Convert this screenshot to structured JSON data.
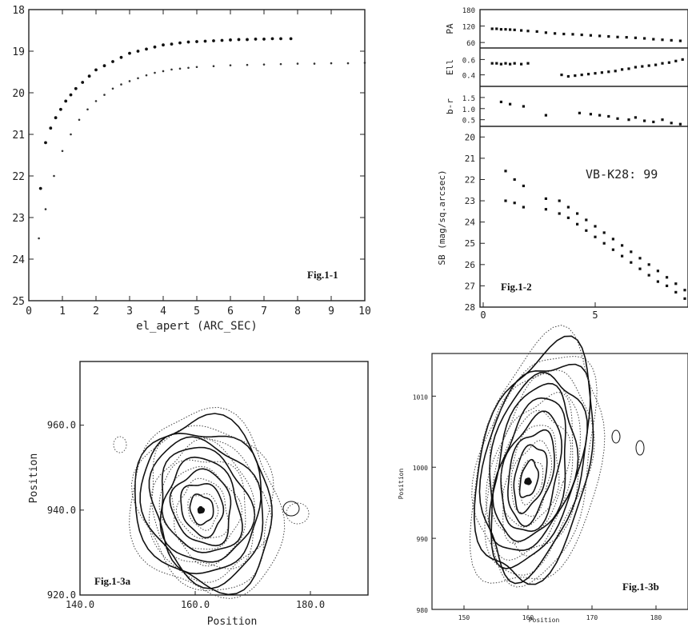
{
  "figures": {
    "fig11": "Fig.1-1",
    "fig12": "Fig.1-2",
    "fig13a": "Fig.1-3a",
    "fig13b": "Fig.1-3b"
  },
  "chart_data": [
    {
      "id": "fig1-1",
      "type": "scatter",
      "xlabel": "el_apert (ARC_SEC)",
      "ylabel": "",
      "xlim": [
        0,
        10
      ],
      "ylim": [
        25,
        18
      ],
      "y_inverted": true,
      "xticks": [
        "0",
        "1",
        "2",
        "3",
        "4",
        "5",
        "6",
        "7",
        "8",
        "9",
        "10"
      ],
      "yticks": [
        "18",
        "19",
        "20",
        "21",
        "22",
        "23",
        "24",
        "25"
      ],
      "series": [
        {
          "style": "dense",
          "x": [
            0.35,
            0.5,
            0.65,
            0.8,
            0.95,
            1.1,
            1.25,
            1.4,
            1.6,
            1.8,
            2.0,
            2.25,
            2.5,
            2.75,
            3.0,
            3.25,
            3.5,
            3.75,
            4.0,
            4.25,
            4.5,
            4.75,
            5.0,
            5.25,
            5.5,
            5.75,
            6.0,
            6.25,
            6.5,
            6.75,
            7.0,
            7.25,
            7.5,
            7.8
          ],
          "y": [
            22.3,
            21.2,
            20.85,
            20.6,
            20.4,
            20.2,
            20.05,
            19.9,
            19.75,
            19.6,
            19.45,
            19.35,
            19.25,
            19.15,
            19.05,
            19.0,
            18.95,
            18.9,
            18.85,
            18.83,
            18.8,
            18.78,
            18.77,
            18.76,
            18.75,
            18.74,
            18.73,
            18.72,
            18.72,
            18.71,
            18.71,
            18.7,
            18.7,
            18.7
          ]
        },
        {
          "style": "sparse",
          "x": [
            0.3,
            0.5,
            0.75,
            1.0,
            1.25,
            1.5,
            1.75,
            2.0,
            2.25,
            2.5,
            2.75,
            3.0,
            3.25,
            3.5,
            3.75,
            4.0,
            4.25,
            4.5,
            4.75,
            5.0,
            5.5,
            6.0,
            6.5,
            7.0,
            7.5,
            8.0,
            8.5,
            9.0,
            9.5,
            10.0
          ],
          "y": [
            23.5,
            22.8,
            22.0,
            21.4,
            21.0,
            20.65,
            20.4,
            20.2,
            20.05,
            19.9,
            19.8,
            19.72,
            19.65,
            19.58,
            19.52,
            19.48,
            19.44,
            19.42,
            19.4,
            19.38,
            19.36,
            19.34,
            19.33,
            19.32,
            19.31,
            19.3,
            19.3,
            19.29,
            19.29,
            19.28
          ]
        }
      ]
    },
    {
      "id": "fig1-2",
      "type": "scatter",
      "xlim": [
        0,
        9
      ],
      "xticks": [
        "0",
        "5"
      ],
      "annotation": "VB-K28: 99",
      "panels": [
        {
          "ylabel": "PA",
          "ylim": [
            40,
            180
          ],
          "yticks": [
            "180",
            "120",
            "60"
          ],
          "x": [
            0.4,
            0.6,
            0.8,
            1.0,
            1.2,
            1.4,
            1.7,
            2.0,
            2.4,
            2.8,
            3.2,
            3.6,
            4.0,
            4.4,
            4.8,
            5.2,
            5.6,
            6.0,
            6.4,
            6.8,
            7.2,
            7.6,
            8.0,
            8.4,
            8.8
          ],
          "y": [
            110,
            110,
            108,
            108,
            107,
            106,
            104,
            102,
            100,
            96,
            93,
            91,
            90,
            88,
            86,
            84,
            82,
            80,
            79,
            77,
            75,
            72,
            70,
            68,
            66
          ]
        },
        {
          "ylabel": "Ell",
          "ylim": [
            0.25,
            0.75
          ],
          "yticks": [
            "0.6",
            "0.4"
          ],
          "x": [
            0.4,
            0.6,
            0.8,
            1.0,
            1.2,
            1.4,
            1.7,
            2.0,
            3.5,
            3.8,
            4.1,
            4.4,
            4.7,
            5.0,
            5.3,
            5.6,
            5.9,
            6.2,
            6.5,
            6.8,
            7.1,
            7.4,
            7.7,
            8.0,
            8.3,
            8.6,
            8.9
          ],
          "y": [
            0.55,
            0.55,
            0.54,
            0.55,
            0.54,
            0.55,
            0.54,
            0.55,
            0.4,
            0.38,
            0.39,
            0.4,
            0.41,
            0.42,
            0.43,
            0.44,
            0.45,
            0.47,
            0.48,
            0.5,
            0.51,
            0.52,
            0.53,
            0.55,
            0.56,
            0.58,
            0.6
          ]
        },
        {
          "ylabel": "b-r",
          "ylim": [
            0.2,
            2.0
          ],
          "yticks": [
            "1.5",
            "1.0",
            "0.5"
          ],
          "x": [
            0.8,
            1.2,
            1.8,
            2.8,
            4.3,
            4.8,
            5.2,
            5.6,
            6.0,
            6.5,
            6.8,
            7.2,
            7.6,
            8.0,
            8.4,
            8.8
          ],
          "y": [
            1.3,
            1.2,
            1.1,
            0.7,
            0.8,
            0.75,
            0.7,
            0.65,
            0.55,
            0.5,
            0.6,
            0.45,
            0.4,
            0.5,
            0.35,
            0.3
          ]
        },
        {
          "ylabel": "SB (mag/sq.arcsec)",
          "ylim": [
            28,
            19.5
          ],
          "yticks": [
            "20",
            "21",
            "22",
            "23",
            "24",
            "25",
            "26",
            "27",
            "28"
          ],
          "series": [
            {
              "x": [
                1.0,
                1.4,
                1.8,
                2.8,
                3.4,
                3.8,
                4.2,
                4.6,
                5.0,
                5.4,
                5.8,
                6.2,
                6.6,
                7.0,
                7.4,
                7.8,
                8.2,
                8.6,
                9.0
              ],
              "y": [
                21.6,
                22.0,
                22.3,
                22.9,
                23.0,
                23.3,
                23.6,
                23.9,
                24.2,
                24.5,
                24.8,
                25.1,
                25.4,
                25.7,
                26.0,
                26.3,
                26.6,
                26.9,
                27.2
              ]
            },
            {
              "x": [
                1.0,
                1.4,
                1.8,
                2.8,
                3.4,
                3.8,
                4.2,
                4.6,
                5.0,
                5.4,
                5.8,
                6.2,
                6.6,
                7.0,
                7.4,
                7.8,
                8.2,
                8.6,
                9.0
              ],
              "y": [
                23.0,
                23.1,
                23.3,
                23.4,
                23.6,
                23.8,
                24.1,
                24.4,
                24.7,
                25.0,
                25.3,
                25.6,
                25.9,
                26.2,
                26.5,
                26.8,
                27.0,
                27.3,
                27.6
              ]
            }
          ]
        }
      ]
    },
    {
      "id": "fig1-3a",
      "type": "contour",
      "xlabel": "Position",
      "ylabel": "Position",
      "xlim": [
        140,
        190
      ],
      "ylim": [
        920,
        975
      ],
      "xticks": [
        "140.0",
        "160.0",
        "180.0"
      ],
      "yticks": [
        "920.0",
        "940.0",
        "960.0"
      ],
      "center": [
        161,
        940
      ]
    },
    {
      "id": "fig1-3b",
      "type": "contour",
      "xlabel": "Position",
      "ylabel": "Position",
      "xlim": [
        145,
        185
      ],
      "ylim": [
        980,
        1016
      ],
      "xticks": [
        "150",
        "160",
        "170",
        "180"
      ],
      "yticks": [
        "980",
        "990",
        "1000",
        "1010"
      ],
      "center": [
        160,
        998
      ]
    }
  ]
}
